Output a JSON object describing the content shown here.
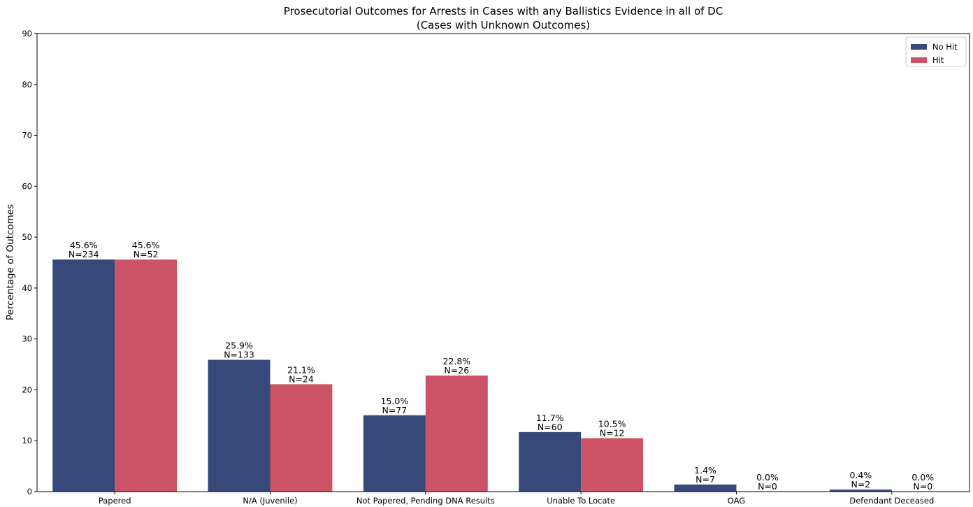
{
  "chart_data": {
    "type": "bar",
    "title": "Prosecutorial Outcomes for Arrests in Cases with any Ballistics Evidence in all of DC",
    "subtitle": "(Cases with Unknown Outcomes)",
    "xlabel": "",
    "ylabel": "Percentage of Outcomes",
    "ylim": [
      0,
      90
    ],
    "yticks": [
      0,
      10,
      20,
      30,
      40,
      50,
      60,
      70,
      80,
      90
    ],
    "categories": [
      "Papered",
      "N/A (Juvenile)",
      "Not Papered, Pending DNA Results",
      "Unable To Locate",
      "OAG",
      "Defendant Deceased"
    ],
    "series": [
      {
        "name": "No Hit",
        "color": "#37497b",
        "values": [
          45.6,
          25.9,
          15.0,
          11.7,
          1.4,
          0.4
        ],
        "pct_labels": [
          "45.6%",
          "25.9%",
          "15.0%",
          "11.7%",
          "1.4%",
          "0.4%"
        ],
        "n_labels": [
          "N=234",
          "N=133",
          "N=77",
          "N=60",
          "N=7",
          "N=2"
        ]
      },
      {
        "name": "Hit",
        "color": "#cb5365",
        "values": [
          45.6,
          21.1,
          22.8,
          10.5,
          0.0,
          0.0
        ],
        "pct_labels": [
          "45.6%",
          "21.1%",
          "22.8%",
          "10.5%",
          "0.0%",
          "0.0%"
        ],
        "n_labels": [
          "N=52",
          "N=24",
          "N=26",
          "N=12",
          "N=0",
          "N=0"
        ]
      }
    ],
    "grid": false,
    "legend_position": "top-right"
  }
}
